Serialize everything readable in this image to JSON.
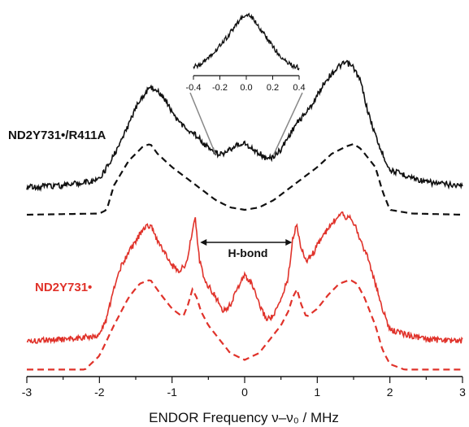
{
  "chart_data": {
    "type": "line",
    "xlabel": "ENDOR Frequency  ν–ν₀ / MHz",
    "xlim": [
      -3,
      3
    ],
    "xticks": [
      -3,
      -2,
      -1,
      0,
      1,
      2,
      3
    ],
    "grid": false,
    "series": [
      {
        "name": "ND₂Y₇₃₁•/R411A",
        "kind": "experimental",
        "color": "#111111",
        "style": "solid",
        "x": [
          -3.0,
          -2.5,
          -2.0,
          -1.8,
          -1.6,
          -1.45,
          -1.3,
          -1.15,
          -1.0,
          -0.9,
          -0.8,
          -0.7,
          -0.6,
          -0.5,
          -0.4,
          -0.3,
          -0.2,
          -0.1,
          0.0,
          0.1,
          0.2,
          0.3,
          0.4,
          0.5,
          0.6,
          0.7,
          0.8,
          0.9,
          1.0,
          1.1,
          1.2,
          1.3,
          1.4,
          1.5,
          1.6,
          1.7,
          1.85,
          2.0,
          2.5,
          3.0
        ],
        "y": [
          0.04,
          0.05,
          0.1,
          0.3,
          0.55,
          0.75,
          0.86,
          0.8,
          0.66,
          0.57,
          0.52,
          0.48,
          0.42,
          0.36,
          0.32,
          0.3,
          0.35,
          0.39,
          0.4,
          0.35,
          0.32,
          0.27,
          0.29,
          0.35,
          0.45,
          0.55,
          0.62,
          0.69,
          0.79,
          0.9,
          0.97,
          1.03,
          1.06,
          1.02,
          0.9,
          0.65,
          0.38,
          0.18,
          0.08,
          0.05
        ]
      },
      {
        "name": "ND₂Y₇₃₁•/R411A",
        "kind": "simulation",
        "color": "#111111",
        "style": "dashed",
        "x": [
          -3.0,
          -2.0,
          -1.9,
          -1.8,
          -1.6,
          -1.4,
          -1.3,
          -1.2,
          -1.0,
          -0.8,
          -0.6,
          -0.4,
          -0.2,
          0.0,
          0.2,
          0.4,
          0.6,
          0.8,
          1.0,
          1.2,
          1.4,
          1.5,
          1.6,
          1.8,
          1.9,
          2.0,
          2.3,
          3.0
        ],
        "y": [
          -0.04,
          -0.03,
          0.0,
          0.2,
          0.4,
          0.52,
          0.54,
          0.46,
          0.35,
          0.26,
          0.17,
          0.08,
          0.02,
          0.0,
          0.02,
          0.08,
          0.17,
          0.26,
          0.35,
          0.46,
          0.52,
          0.54,
          0.5,
          0.35,
          0.15,
          0.0,
          -0.03,
          -0.04
        ]
      },
      {
        "name": "ND₂Y₇₃₁•",
        "kind": "experimental",
        "color": "#e0322a",
        "style": "solid",
        "x": [
          -3.0,
          -2.5,
          -2.0,
          -1.9,
          -1.8,
          -1.7,
          -1.6,
          -1.5,
          -1.4,
          -1.3,
          -1.2,
          -1.1,
          -1.0,
          -0.9,
          -0.8,
          -0.74,
          -0.68,
          -0.62,
          -0.55,
          -0.4,
          -0.3,
          -0.2,
          -0.1,
          0.0,
          0.1,
          0.2,
          0.3,
          0.4,
          0.5,
          0.6,
          0.66,
          0.72,
          0.78,
          0.85,
          0.95,
          1.05,
          1.15,
          1.25,
          1.33,
          1.4,
          1.45,
          1.5,
          1.55,
          1.6,
          1.7,
          1.8,
          1.9,
          2.0,
          2.5,
          3.0
        ],
        "y": [
          0.04,
          0.05,
          0.08,
          0.2,
          0.42,
          0.58,
          0.68,
          0.76,
          0.85,
          0.88,
          0.76,
          0.68,
          0.58,
          0.55,
          0.6,
          0.78,
          0.92,
          0.62,
          0.48,
          0.36,
          0.26,
          0.3,
          0.42,
          0.52,
          0.45,
          0.3,
          0.2,
          0.22,
          0.34,
          0.5,
          0.78,
          0.88,
          0.7,
          0.62,
          0.68,
          0.78,
          0.85,
          0.92,
          0.98,
          0.93,
          0.95,
          0.9,
          0.83,
          0.76,
          0.64,
          0.45,
          0.27,
          0.12,
          0.05,
          0.04
        ]
      },
      {
        "name": "ND₂Y₇₃₁•",
        "kind": "simulation",
        "color": "#e0322a",
        "style": "dashed",
        "x": [
          -3.0,
          -2.2,
          -2.0,
          -1.8,
          -1.6,
          -1.45,
          -1.3,
          -1.15,
          -1.0,
          -0.85,
          -0.78,
          -0.72,
          -0.66,
          -0.6,
          -0.5,
          -0.35,
          -0.2,
          0.0,
          0.2,
          0.35,
          0.5,
          0.6,
          0.66,
          0.72,
          0.78,
          0.85,
          1.0,
          1.15,
          1.3,
          1.45,
          1.55,
          1.65,
          1.8,
          1.9,
          2.0,
          2.2,
          3.0
        ],
        "y": [
          -0.02,
          -0.02,
          0.08,
          0.3,
          0.5,
          0.6,
          0.63,
          0.52,
          0.42,
          0.36,
          0.45,
          0.56,
          0.5,
          0.4,
          0.3,
          0.2,
          0.1,
          0.05,
          0.1,
          0.2,
          0.3,
          0.4,
          0.5,
          0.56,
          0.45,
          0.36,
          0.42,
          0.52,
          0.6,
          0.63,
          0.6,
          0.5,
          0.3,
          0.12,
          0.02,
          -0.02,
          -0.02
        ]
      }
    ],
    "inset": {
      "xlim": [
        -0.4,
        0.4
      ],
      "xticks": [
        -0.4,
        -0.2,
        0.0,
        0.2,
        0.4
      ],
      "x": [
        -0.4,
        -0.35,
        -0.3,
        -0.25,
        -0.2,
        -0.15,
        -0.1,
        -0.05,
        0.0,
        0.05,
        0.1,
        0.15,
        0.2,
        0.25,
        0.3,
        0.35,
        0.4
      ],
      "y": [
        0.05,
        0.1,
        0.18,
        0.28,
        0.42,
        0.55,
        0.7,
        0.85,
        0.96,
        0.88,
        0.72,
        0.56,
        0.4,
        0.26,
        0.15,
        0.08,
        0.04
      ]
    },
    "annotations": [
      {
        "text": "H-bond",
        "from_x": -0.68,
        "to_x": 0.72
      }
    ],
    "labels": {
      "black": "ND2Y731•/R411A",
      "red": "ND2Y731•"
    }
  }
}
